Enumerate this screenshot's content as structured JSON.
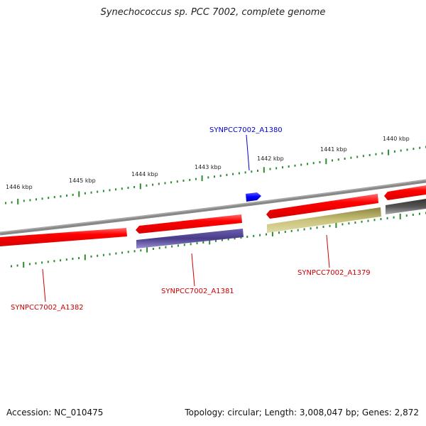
{
  "title": "Synechococcus sp. PCC 7002, complete genome",
  "footer": {
    "accession": "Accession: NC_010475",
    "summary": "Topology: circular; Length: 3,008,047 bp; Genes: 2,872"
  },
  "kbp_labels": [
    "1446 kbp",
    "1445 kbp",
    "1444 kbp",
    "1443 kbp",
    "1442 kbp",
    "1441 kbp",
    "1440 kbp"
  ],
  "genes": {
    "a1380": "SYNPCC7002_A1380",
    "a1379": "SYNPCC7002_A1379",
    "a1381": "SYNPCC7002_A1381",
    "a1382": "SYNPCC7002_A1382"
  },
  "colors": {
    "forward_cds": "#ff0000",
    "reverse_cds": "#ff0000",
    "blue_gene": "#0000ff",
    "purple_feature": "#4a3f8c",
    "olive_feature": "#c8c27a",
    "dark_feature": "#555555",
    "backbone": "#888888",
    "ticks": "#2e8b2e",
    "label_blue": "#0000cc",
    "label_red": "#cc0000"
  }
}
